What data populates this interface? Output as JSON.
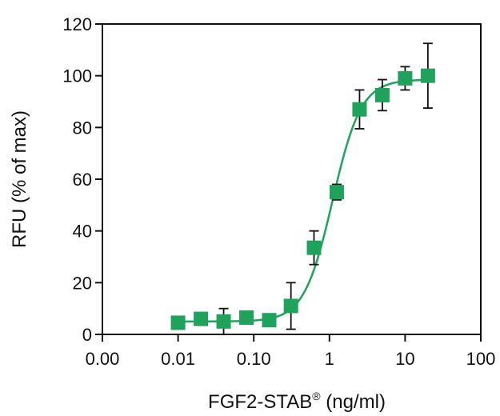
{
  "chart_data": {
    "type": "scatter",
    "xlabel": "FGF2-STAB",
    "xlabel_superscript": "®",
    "xlabel_suffix": " (ng/ml)",
    "ylabel": "RFU (% of max)",
    "x_scale": "log",
    "xlim": [
      0.001,
      100
    ],
    "ylim": [
      0,
      120
    ],
    "x_ticks": [
      0.001,
      0.01,
      0.1,
      1,
      10,
      100
    ],
    "x_tick_labels": [
      "0.00",
      "0.01",
      "0.10",
      "1",
      "10",
      "100"
    ],
    "y_ticks": [
      0,
      20,
      40,
      60,
      80,
      100,
      120
    ],
    "y_tick_labels": [
      "0",
      "20",
      "40",
      "60",
      "80",
      "100",
      "120"
    ],
    "grid": false,
    "legend": "none",
    "series_color": "#1fa35c",
    "series": [
      {
        "x": [
          0.01,
          0.02,
          0.04,
          0.08,
          0.16,
          0.31,
          0.625,
          1.25,
          2.5,
          5,
          10,
          20
        ],
        "y": [
          4.5,
          6,
          5,
          6.5,
          5.5,
          11,
          33.5,
          55,
          87,
          92.5,
          99,
          100
        ],
        "error": [
          1,
          1.5,
          5,
          1.5,
          1.5,
          9,
          6.5,
          3,
          7.5,
          6,
          4.5,
          12.5
        ]
      }
    ],
    "fit_curve": {
      "type": "4PL",
      "bottom": 5,
      "top": 98.5,
      "ec50": 1.1,
      "hill": 2.3
    }
  }
}
